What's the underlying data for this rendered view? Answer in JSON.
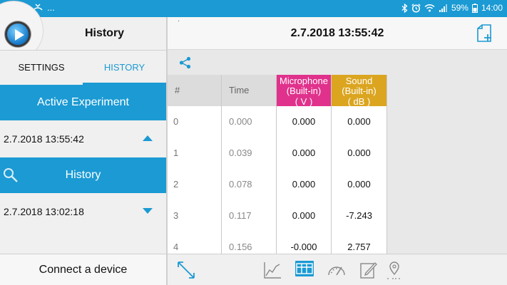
{
  "status_bar": {
    "left_more": "...",
    "battery_percent": "59%",
    "time": "14:00"
  },
  "sidebar": {
    "title": "History",
    "tabs": [
      {
        "label": "SETTINGS",
        "active": false
      },
      {
        "label": "HISTORY",
        "active": true
      }
    ],
    "active_experiment": {
      "header": "Active Experiment",
      "item": "2.7.2018 13:55:42"
    },
    "history": {
      "header": "History",
      "item": "2.7.2018 13:02:18"
    },
    "connect_label": "Connect a device"
  },
  "main": {
    "title": "2.7.2018 13:55:42",
    "corner_mark": "·",
    "table": {
      "columns": [
        {
          "label": "#",
          "kind": "index"
        },
        {
          "label": "Time",
          "kind": "time"
        },
        {
          "label": "Microphone\n(Built-in)\n( V )",
          "kind": "mic",
          "color": "#e0328c"
        },
        {
          "label": "Sound\n(Built-in)\n( dB )",
          "kind": "sound",
          "color": "#dba520"
        }
      ],
      "rows": [
        [
          "0",
          "0.000",
          "0.000",
          "0.000"
        ],
        [
          "1",
          "0.039",
          "0.000",
          "0.000"
        ],
        [
          "2",
          "0.078",
          "0.000",
          "0.000"
        ],
        [
          "3",
          "0.117",
          "0.000",
          "-7.243"
        ],
        [
          "4",
          "0.156",
          "-0.000",
          "2.757"
        ]
      ]
    },
    "toolbar": {
      "selected": "table-view",
      "icons": [
        "expand-icon",
        "line-graph-icon",
        "table-view-icon",
        "gauge-icon",
        "notes-icon",
        "map-pin-icon"
      ]
    }
  },
  "colors": {
    "accent": "#1b9ad3",
    "microphone": "#e0328c",
    "sound": "#dba520"
  }
}
